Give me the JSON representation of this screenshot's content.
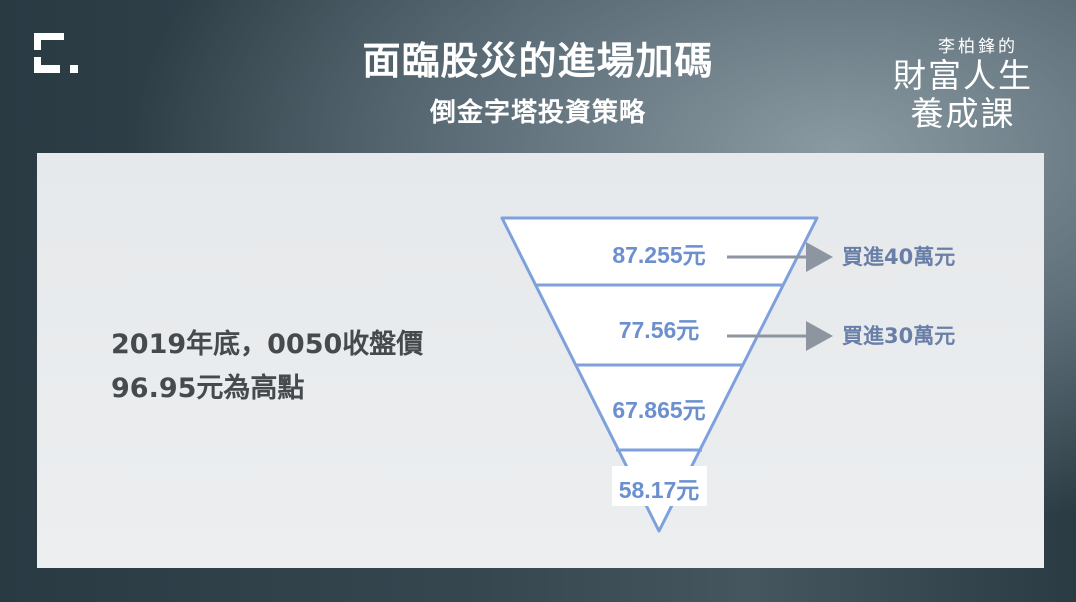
{
  "header": {
    "title": "面臨股災的進場加碼",
    "subtitle": "倒金字塔投資策略",
    "brand_small": "李柏鋒的",
    "brand_line1": "財富人生",
    "brand_line2": "養成課"
  },
  "description": {
    "line1": "2019年底，0050收盤價",
    "line2": "96.95元為高點"
  },
  "funnel": {
    "levels": [
      {
        "price": "87.255元",
        "action": "買進40萬元"
      },
      {
        "price": "77.56元",
        "action": "買進30萬元"
      },
      {
        "price": "67.865元",
        "action": ""
      },
      {
        "price": "58.17元",
        "action": ""
      }
    ]
  },
  "colors": {
    "funnel_stroke": "#7ea0dc",
    "price_text": "#6b8fcf",
    "arrow": "#8d96a0",
    "action_text": "#6a7fa8"
  }
}
